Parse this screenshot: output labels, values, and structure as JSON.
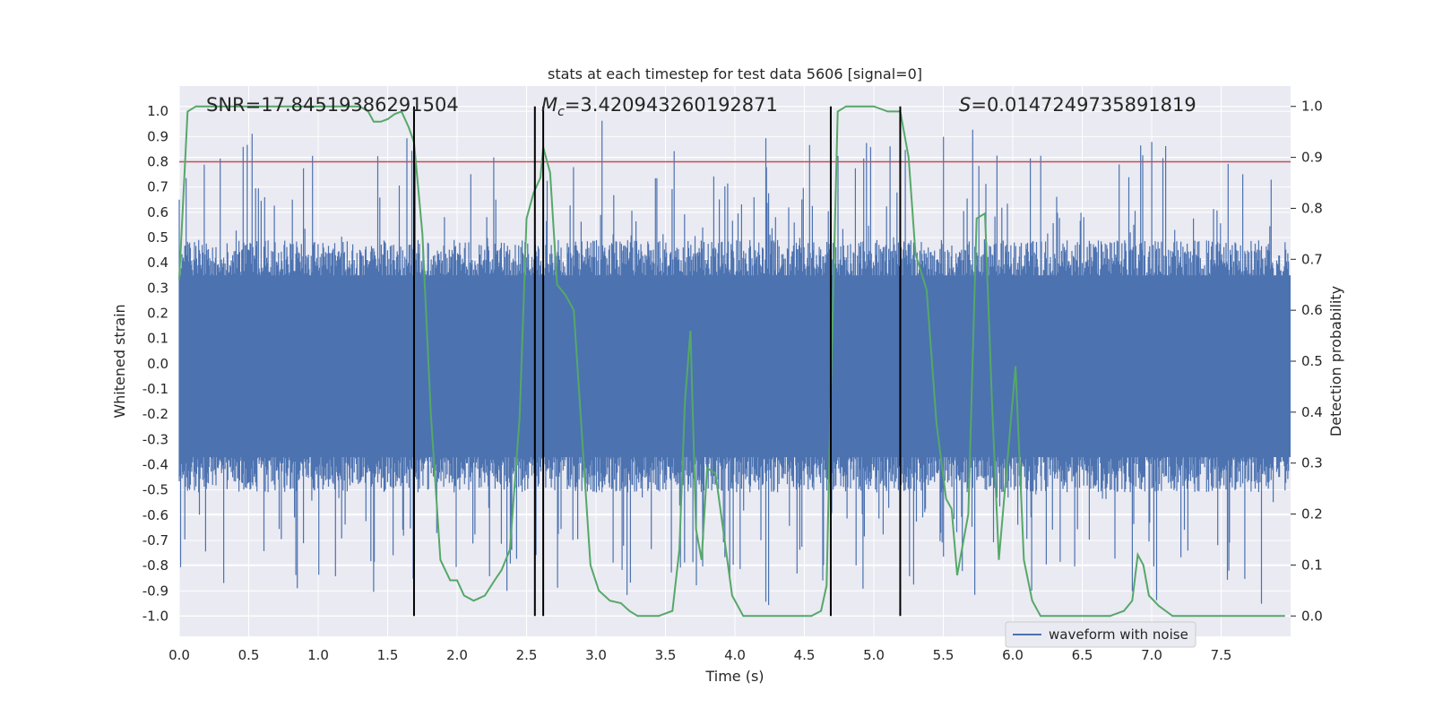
{
  "chart_data": {
    "type": "line",
    "title": "stats at each timestep for test data 5606 [signal=0]",
    "xlabel": "Time (s)",
    "ylabel_left": "Whitened strain",
    "ylabel_right": "Detection probability",
    "xlim": [
      0.0,
      8.0
    ],
    "ylim_left": [
      -1.08,
      1.1
    ],
    "ylim_right": [
      -0.04,
      1.04
    ],
    "x_ticks": [
      "0.0",
      "0.5",
      "1.0",
      "1.5",
      "2.0",
      "2.5",
      "3.0",
      "3.5",
      "4.0",
      "4.5",
      "5.0",
      "5.5",
      "6.0",
      "6.5",
      "7.0",
      "7.5"
    ],
    "y_ticks_left": [
      "1.0",
      "0.9",
      "0.8",
      "0.7",
      "0.6",
      "0.5",
      "0.4",
      "0.3",
      "0.2",
      "0.1",
      "0.0",
      "-0.1",
      "-0.2",
      "-0.3",
      "-0.4",
      "-0.5",
      "-0.6",
      "-0.7",
      "-0.8",
      "-0.9",
      "-1.0"
    ],
    "y_ticks_right": [
      "1.0",
      "0.9",
      "0.8",
      "0.7",
      "0.6",
      "0.5",
      "0.4",
      "0.3",
      "0.2",
      "0.1",
      "0.0"
    ],
    "threshold": 0.8,
    "threshold_color": "#c44e52",
    "event_lines": [
      1.69,
      2.56,
      2.62,
      4.69,
      5.19
    ],
    "annotations": {
      "snr": "SNR=17.84519386291504",
      "mc_prefix": "M",
      "mc_sub": "c",
      "mc_value": "=3.420943260192871",
      "s_prefix": "S",
      "s_value": "=0.0147249735891819"
    },
    "series": [
      {
        "name": "waveform with noise",
        "color": "#4c72b0",
        "x_range": [
          0.0,
          7.99
        ],
        "samples": 1600,
        "amplitude_typical": 0.4
      },
      {
        "name": "detection probability",
        "color": "#55a868",
        "x": [
          0.0,
          0.06,
          0.12,
          0.2,
          0.3,
          0.4,
          0.5,
          0.6,
          0.7,
          0.8,
          0.9,
          1.0,
          1.1,
          1.2,
          1.3,
          1.36,
          1.4,
          1.45,
          1.5,
          1.55,
          1.6,
          1.65,
          1.69,
          1.75,
          1.81,
          1.88,
          1.95,
          2.0,
          2.05,
          2.12,
          2.2,
          2.27,
          2.32,
          2.38,
          2.45,
          2.5,
          2.55,
          2.6,
          2.62,
          2.67,
          2.72,
          2.78,
          2.84,
          2.9,
          2.96,
          3.02,
          3.1,
          3.18,
          3.24,
          3.3,
          3.38,
          3.45,
          3.55,
          3.6,
          3.64,
          3.68,
          3.72,
          3.76,
          3.8,
          3.86,
          3.92,
          3.98,
          4.06,
          4.15,
          4.3,
          4.45,
          4.55,
          4.62,
          4.66,
          4.69,
          4.74,
          4.8,
          4.9,
          5.0,
          5.1,
          5.19,
          5.25,
          5.3,
          5.38,
          5.45,
          5.52,
          5.56,
          5.6,
          5.68,
          5.74,
          5.8,
          5.85,
          5.9,
          5.96,
          6.02,
          6.08,
          6.14,
          6.2,
          6.3,
          6.45,
          6.6,
          6.7,
          6.8,
          6.86,
          6.9,
          6.94,
          6.98,
          7.05,
          7.15,
          7.25,
          7.5,
          7.75,
          7.96
        ],
        "y": [
          0.66,
          0.99,
          1.0,
          1.0,
          1.0,
          1.0,
          1.0,
          1.0,
          1.0,
          1.0,
          1.0,
          1.0,
          1.0,
          1.0,
          1.0,
          0.99,
          0.97,
          0.97,
          0.975,
          0.985,
          0.99,
          0.96,
          0.93,
          0.75,
          0.4,
          0.11,
          0.07,
          0.07,
          0.04,
          0.03,
          0.04,
          0.07,
          0.09,
          0.13,
          0.39,
          0.78,
          0.83,
          0.86,
          0.92,
          0.87,
          0.65,
          0.63,
          0.6,
          0.35,
          0.1,
          0.05,
          0.03,
          0.025,
          0.01,
          0.0,
          0.0,
          0.0,
          0.01,
          0.13,
          0.42,
          0.56,
          0.17,
          0.11,
          0.29,
          0.28,
          0.16,
          0.04,
          0.0,
          0.0,
          0.0,
          0.0,
          0.0,
          0.01,
          0.06,
          0.44,
          0.99,
          1.0,
          1.0,
          1.0,
          0.99,
          0.99,
          0.9,
          0.71,
          0.64,
          0.38,
          0.23,
          0.21,
          0.08,
          0.2,
          0.78,
          0.79,
          0.42,
          0.11,
          0.3,
          0.49,
          0.11,
          0.03,
          0.0,
          0.0,
          0.0,
          0.0,
          0.0,
          0.01,
          0.03,
          0.12,
          0.1,
          0.04,
          0.02,
          0.0,
          0.0,
          0.0,
          0.0,
          0.0
        ]
      }
    ],
    "legend": {
      "entries": [
        "waveform with noise"
      ],
      "position": "lower-center-right"
    },
    "grid": true,
    "background": "#eaeaf2"
  }
}
